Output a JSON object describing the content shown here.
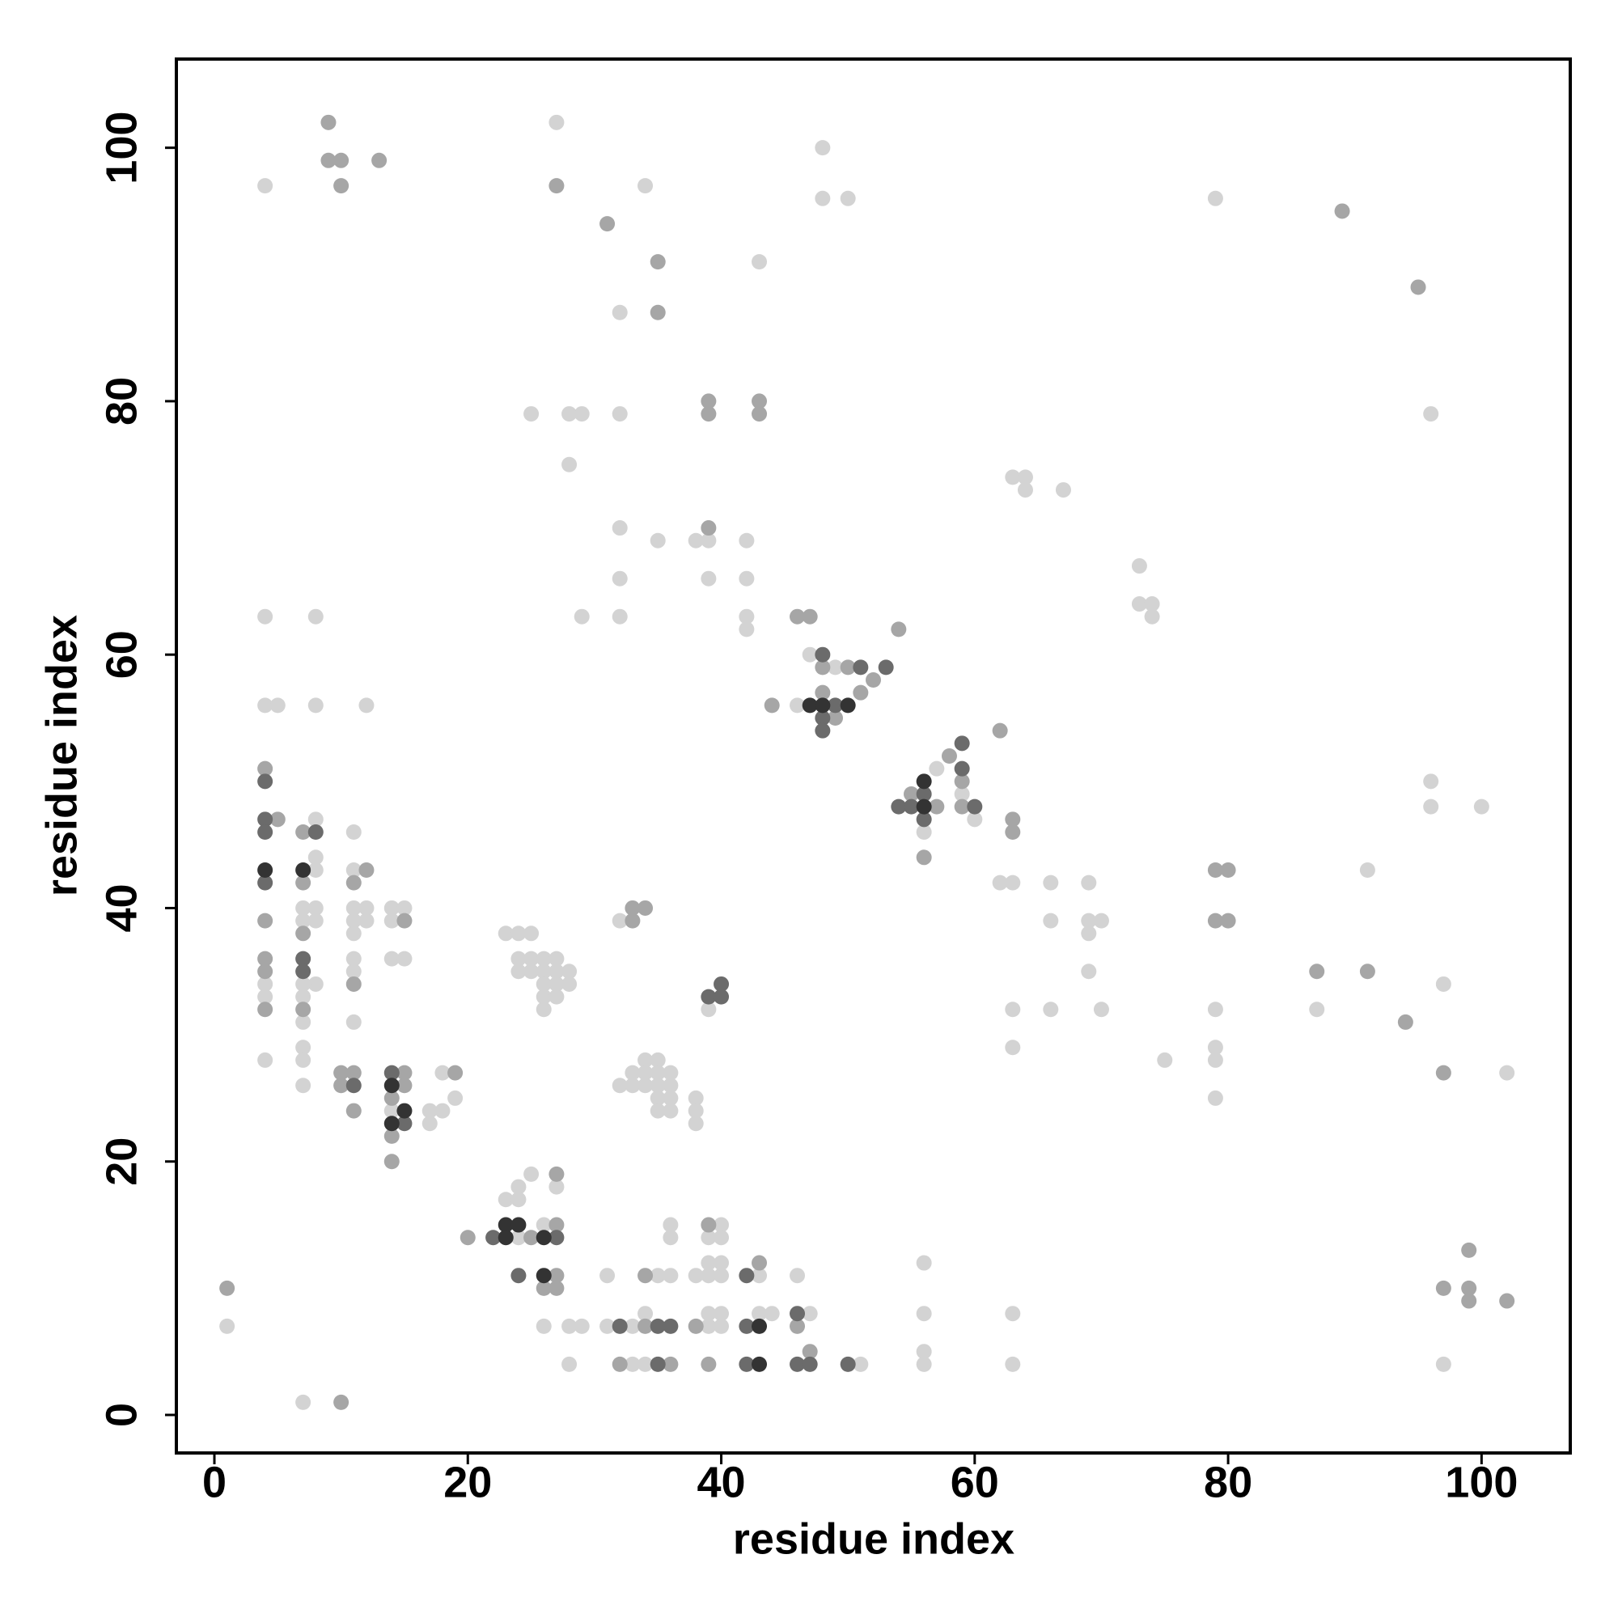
{
  "chart_data": {
    "type": "scatter",
    "xlabel": "residue index",
    "ylabel": "residue index",
    "xlim": [
      -3,
      107
    ],
    "ylim": [
      -3,
      107
    ],
    "xticks": [
      0,
      20,
      40,
      60,
      80,
      100
    ],
    "yticks": [
      0,
      20,
      40,
      60,
      80,
      100
    ],
    "series": [
      {
        "color": "#d3d3d3",
        "x": [
          4,
          27,
          34,
          32,
          43,
          48,
          48,
          50,
          79,
          96,
          25,
          28,
          29,
          32,
          28,
          32,
          35,
          38,
          39,
          42,
          32,
          39,
          42,
          32,
          29,
          42,
          42,
          47,
          49,
          46,
          57,
          59,
          60,
          56,
          63,
          64,
          64,
          67,
          73,
          73,
          74,
          74,
          96,
          96,
          100,
          62,
          63,
          66,
          69,
          66,
          69,
          70,
          69,
          69,
          91,
          97,
          63,
          66,
          70,
          63,
          79,
          79,
          79,
          75,
          79,
          87,
          102,
          4,
          8,
          4,
          5,
          8,
          12,
          4,
          4,
          4,
          8,
          8,
          8,
          7,
          8,
          7,
          8,
          8,
          7,
          7,
          7,
          7,
          7,
          7,
          7,
          11,
          11,
          11,
          12,
          11,
          12,
          11,
          11,
          11,
          11,
          14,
          15,
          14,
          14,
          15,
          14,
          18,
          19,
          17,
          18,
          17,
          1,
          23,
          24,
          25,
          24,
          25,
          26,
          27,
          24,
          25,
          26,
          27,
          28,
          26,
          27,
          28,
          26,
          27,
          26,
          32,
          39,
          34,
          35,
          33,
          34,
          35,
          36,
          32,
          33,
          34,
          35,
          36,
          35,
          36,
          35,
          36,
          38,
          38,
          38,
          25,
          27,
          24,
          23,
          24,
          24,
          26,
          26,
          28,
          29,
          28,
          31,
          31,
          33,
          34,
          33,
          34,
          35,
          36,
          36,
          36,
          38,
          39,
          40,
          40,
          39,
          40,
          39,
          40,
          39,
          40,
          39,
          40,
          43,
          43,
          44,
          46,
          47,
          51,
          56,
          56,
          56,
          56,
          63,
          63,
          97
        ],
        "y": [
          97,
          102,
          97,
          87,
          91,
          100,
          96,
          96,
          96,
          79,
          79,
          79,
          79,
          79,
          75,
          70,
          69,
          69,
          69,
          69,
          66,
          66,
          66,
          63,
          63,
          63,
          62,
          60,
          59,
          56,
          51,
          49,
          47,
          46,
          74,
          74,
          73,
          73,
          67,
          64,
          64,
          63,
          50,
          48,
          48,
          42,
          42,
          42,
          42,
          39,
          39,
          39,
          38,
          35,
          43,
          34,
          32,
          32,
          32,
          29,
          32,
          29,
          28,
          28,
          25,
          32,
          27,
          63,
          63,
          56,
          56,
          56,
          56,
          34,
          33,
          28,
          47,
          44,
          43,
          40,
          40,
          39,
          39,
          34,
          34,
          33,
          31,
          29,
          28,
          26,
          1,
          46,
          43,
          40,
          40,
          39,
          39,
          38,
          36,
          35,
          31,
          40,
          40,
          39,
          36,
          36,
          24,
          27,
          25,
          24,
          24,
          23,
          7,
          38,
          38,
          38,
          36,
          36,
          36,
          36,
          35,
          35,
          35,
          35,
          35,
          34,
          34,
          34,
          33,
          33,
          32,
          39,
          32,
          28,
          28,
          27,
          27,
          27,
          27,
          26,
          26,
          26,
          26,
          26,
          25,
          25,
          24,
          24,
          25,
          24,
          23,
          19,
          18,
          18,
          17,
          17,
          14,
          15,
          7,
          7,
          7,
          4,
          11,
          7,
          7,
          8,
          4,
          4,
          11,
          11,
          15,
          14,
          11,
          11,
          11,
          15,
          14,
          14,
          12,
          12,
          8,
          8,
          7,
          7,
          11,
          8,
          8,
          11,
          8,
          4,
          12,
          8,
          5,
          4,
          8,
          4,
          4
        ]
      },
      {
        "color": "#a6a6a6",
        "x": [
          9,
          9,
          10,
          10,
          13,
          27,
          31,
          35,
          35,
          89,
          95,
          39,
          39,
          43,
          43,
          39,
          46,
          47,
          54,
          48,
          50,
          52,
          51,
          48,
          44,
          49,
          62,
          58,
          59,
          55,
          57,
          59,
          56,
          63,
          63,
          79,
          80,
          79,
          80,
          87,
          91,
          94,
          97,
          4,
          5,
          4,
          4,
          4,
          4,
          7,
          7,
          7,
          7,
          12,
          11,
          11,
          15,
          10,
          11,
          10,
          11,
          15,
          15,
          14,
          14,
          14,
          19,
          1,
          10,
          33,
          34,
          33,
          27,
          20,
          25,
          27,
          27,
          26,
          27,
          34,
          32,
          36,
          34,
          39,
          38,
          39,
          43,
          46,
          47,
          99,
          97,
          99,
          99,
          102
        ],
        "y": [
          102,
          99,
          99,
          97,
          99,
          97,
          94,
          91,
          87,
          95,
          89,
          80,
          79,
          80,
          79,
          70,
          63,
          63,
          62,
          59,
          59,
          58,
          57,
          57,
          56,
          55,
          54,
          52,
          50,
          49,
          48,
          48,
          44,
          47,
          46,
          43,
          43,
          39,
          39,
          35,
          35,
          31,
          27,
          51,
          47,
          39,
          36,
          35,
          32,
          46,
          42,
          38,
          32,
          43,
          42,
          34,
          39,
          27,
          27,
          26,
          24,
          27,
          26,
          25,
          22,
          20,
          27,
          10,
          1,
          40,
          40,
          39,
          19,
          14,
          14,
          15,
          11,
          10,
          10,
          7,
          4,
          4,
          11,
          15,
          7,
          4,
          12,
          7,
          5,
          13,
          10,
          10,
          9,
          9
        ]
      },
      {
        "color": "#6b6b6b",
        "x": [
          48,
          51,
          53,
          49,
          48,
          48,
          59,
          59,
          56,
          54,
          55,
          60,
          56,
          4,
          4,
          4,
          4,
          8,
          7,
          7,
          11,
          14,
          15,
          39,
          40,
          40,
          22,
          27,
          24,
          32,
          35,
          36,
          35,
          42,
          42,
          42,
          46,
          46,
          47,
          50
        ],
        "y": [
          60,
          59,
          59,
          56,
          55,
          54,
          53,
          51,
          49,
          48,
          48,
          48,
          47,
          50,
          47,
          46,
          42,
          46,
          36,
          35,
          26,
          27,
          23,
          33,
          34,
          33,
          14,
          14,
          11,
          7,
          7,
          7,
          4,
          11,
          7,
          4,
          8,
          4,
          4,
          4
        ]
      },
      {
        "color": "#333333",
        "x": [
          47,
          48,
          50,
          56,
          56,
          4,
          7,
          14,
          15,
          14,
          23,
          24,
          23,
          26,
          26,
          43,
          43
        ],
        "y": [
          56,
          56,
          56,
          50,
          48,
          43,
          43,
          26,
          24,
          23,
          15,
          15,
          14,
          14,
          11,
          7,
          4
        ]
      }
    ]
  }
}
